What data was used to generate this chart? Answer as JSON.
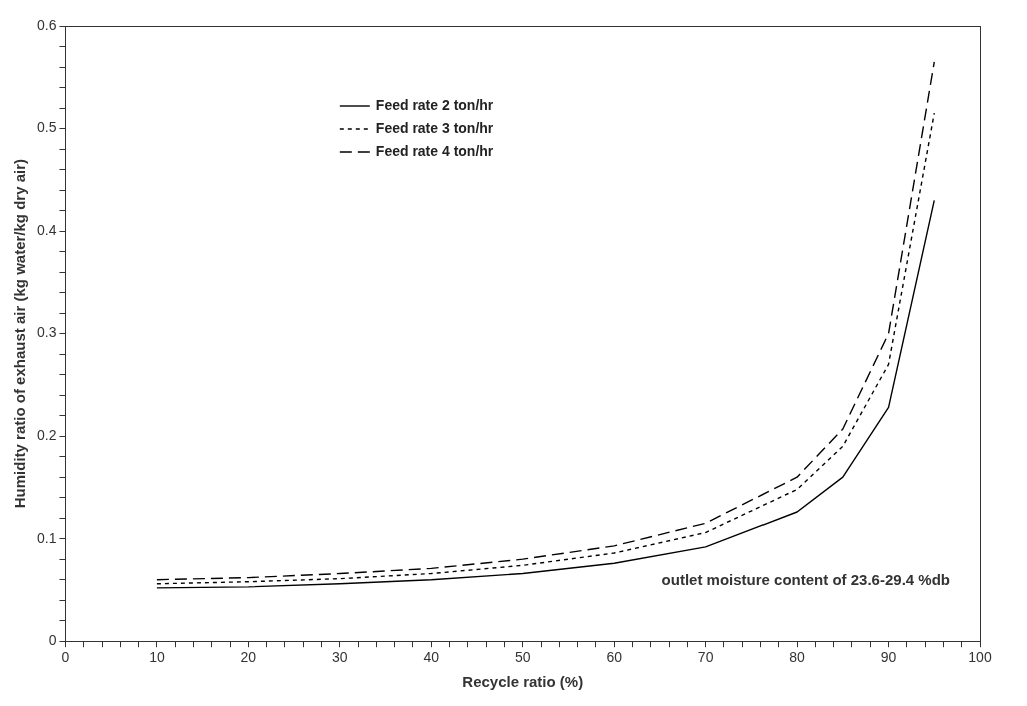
{
  "chart_data": {
    "type": "line",
    "xlabel": "Recycle ratio (%)",
    "ylabel": "Humidity ratio of exhaust air (kg water/kg dry air)",
    "x": [
      10,
      20,
      30,
      40,
      50,
      60,
      70,
      80,
      85,
      90,
      95
    ],
    "series": [
      {
        "name": "Feed rate 2 ton/hr",
        "color": "#000000",
        "line_style": "solid",
        "values": [
          0.052,
          0.053,
          0.056,
          0.06,
          0.066,
          0.076,
          0.092,
          0.126,
          0.16,
          0.228,
          0.43
        ]
      },
      {
        "name": "Feed rate 3 ton/hr",
        "color": "#000000",
        "line_style": "dotted",
        "values": [
          0.056,
          0.058,
          0.061,
          0.066,
          0.074,
          0.086,
          0.106,
          0.148,
          0.19,
          0.27,
          0.515
        ]
      },
      {
        "name": "Feed rate 4 ton/hr",
        "color": "#000000",
        "line_style": "dashed",
        "values": [
          0.06,
          0.062,
          0.066,
          0.071,
          0.08,
          0.093,
          0.115,
          0.16,
          0.207,
          0.3,
          0.565
        ]
      }
    ],
    "xlim": [
      0,
      100
    ],
    "xticks": [
      0,
      {
        "value": 2,
        "label": null
      },
      {
        "value": 4,
        "label": null
      },
      {
        "value": 6,
        "label": null
      },
      {
        "value": 8,
        "label": null
      },
      10,
      {
        "value": 12,
        "label": null
      },
      {
        "value": 14,
        "label": null
      },
      {
        "value": 16,
        "label": null
      },
      {
        "value": 18,
        "label": null
      },
      20,
      {
        "value": 22,
        "label": null
      },
      {
        "value": 24,
        "label": null
      },
      {
        "value": 26,
        "label": null
      },
      {
        "value": 28,
        "label": null
      },
      30,
      {
        "value": 32,
        "label": null
      },
      {
        "value": 34,
        "label": null
      },
      {
        "value": 36,
        "label": null
      },
      {
        "value": 38,
        "label": null
      },
      40,
      {
        "value": 42,
        "label": null
      },
      {
        "value": 44,
        "label": null
      },
      {
        "value": 46,
        "label": null
      },
      {
        "value": 48,
        "label": null
      },
      50,
      {
        "value": 52,
        "label": null
      },
      {
        "value": 54,
        "label": null
      },
      {
        "value": 56,
        "label": null
      },
      {
        "value": 58,
        "label": null
      },
      60,
      {
        "value": 62,
        "label": null
      },
      {
        "value": 64,
        "label": null
      },
      {
        "value": 66,
        "label": null
      },
      {
        "value": 68,
        "label": null
      },
      70,
      {
        "value": 72,
        "label": null
      },
      {
        "value": 74,
        "label": null
      },
      {
        "value": 76,
        "label": null
      },
      {
        "value": 78,
        "label": null
      },
      80,
      {
        "value": 82,
        "label": null
      },
      {
        "value": 84,
        "label": null
      },
      {
        "value": 86,
        "label": null
      },
      {
        "value": 88,
        "label": null
      },
      90,
      {
        "value": 92,
        "label": null
      },
      {
        "value": 94,
        "label": null
      },
      {
        "value": 96,
        "label": null
      },
      {
        "value": 98,
        "label": null
      },
      100
    ],
    "ylim": [
      0,
      0.6
    ],
    "yticks": [
      0,
      {
        "value": 0.02,
        "label": null
      },
      {
        "value": 0.04,
        "label": null
      },
      {
        "value": 0.06,
        "label": null
      },
      {
        "value": 0.08,
        "label": null
      },
      0.1,
      {
        "value": 0.12,
        "label": null
      },
      {
        "value": 0.14,
        "label": null
      },
      {
        "value": 0.16,
        "label": null
      },
      {
        "value": 0.18,
        "label": null
      },
      0.2,
      {
        "value": 0.22,
        "label": null
      },
      {
        "value": 0.24,
        "label": null
      },
      {
        "value": 0.26,
        "label": null
      },
      {
        "value": 0.28,
        "label": null
      },
      0.3,
      {
        "value": 0.32,
        "label": null
      },
      {
        "value": 0.34,
        "label": null
      },
      {
        "value": 0.36,
        "label": null
      },
      {
        "value": 0.38,
        "label": null
      },
      0.4,
      {
        "value": 0.42,
        "label": null
      },
      {
        "value": 0.44,
        "label": null
      },
      {
        "value": 0.46,
        "label": null
      },
      {
        "value": 0.48,
        "label": null
      },
      0.5,
      {
        "value": 0.52,
        "label": null
      },
      {
        "value": 0.54,
        "label": null
      },
      {
        "value": 0.56,
        "label": null
      },
      {
        "value": 0.58,
        "label": null
      },
      0.6
    ],
    "grid": false,
    "legend": "top left",
    "marker": "none",
    "annotations": [
      "outlet moisture content of 23.6-29.4 %db"
    ]
  }
}
